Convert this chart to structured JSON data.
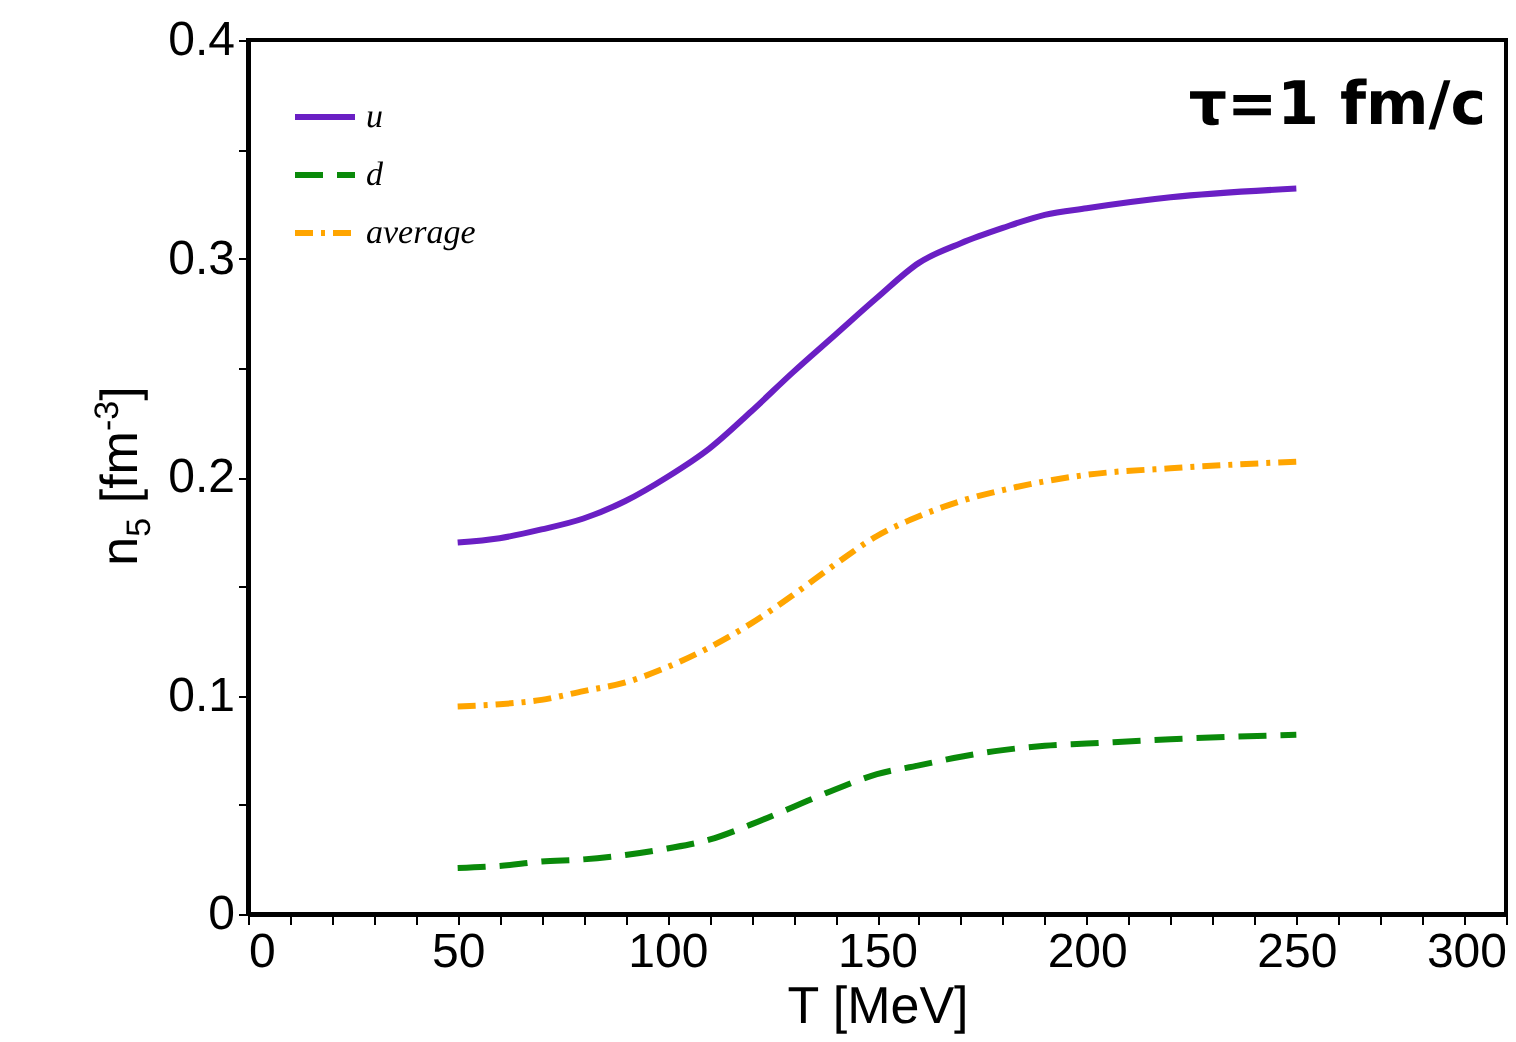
{
  "chart_data": {
    "type": "line",
    "title": "τ=1 fm/c",
    "xlabel": "T [MeV]",
    "ylabel": "n$_{5}$ [fm$^{-3}$]",
    "xlim": [
      0,
      300
    ],
    "ylim": [
      0,
      0.4
    ],
    "xticks": [
      0,
      {
        "value": 10,
        "label": null
      },
      {
        "value": 20,
        "label": null
      },
      {
        "value": 30,
        "label": null
      },
      {
        "value": 40,
        "label": null
      },
      50,
      {
        "value": 60,
        "label": null
      },
      {
        "value": 70,
        "label": null
      },
      {
        "value": 80,
        "label": null
      },
      {
        "value": 90,
        "label": null
      },
      100,
      {
        "value": 110,
        "label": null
      },
      {
        "value": 120,
        "label": null
      },
      {
        "value": 130,
        "label": null
      },
      {
        "value": 140,
        "label": null
      },
      150,
      {
        "value": 160,
        "label": null
      },
      {
        "value": 170,
        "label": null
      },
      {
        "value": 180,
        "label": null
      },
      {
        "value": 190,
        "label": null
      },
      200,
      {
        "value": 210,
        "label": null
      },
      {
        "value": 220,
        "label": null
      },
      {
        "value": 230,
        "label": null
      },
      {
        "value": 240,
        "label": null
      },
      250,
      {
        "value": 260,
        "label": null
      },
      {
        "value": 270,
        "label": null
      },
      {
        "value": 280,
        "label": null
      },
      {
        "value": 290,
        "label": null
      },
      300
    ],
    "yticks": [
      0,
      {
        "value": 0.05,
        "label": null
      },
      0.1,
      {
        "value": 0.15,
        "label": null
      },
      0.2,
      {
        "value": 0.25,
        "label": null
      },
      0.3,
      {
        "value": 0.35,
        "label": null
      },
      0.4
    ],
    "x": [
      50,
      60,
      70,
      80,
      90,
      100,
      110,
      120,
      130,
      140,
      150,
      160,
      170,
      180,
      190,
      200,
      220,
      250
    ],
    "series": [
      {
        "name": "u",
        "color": "#6a1fc4",
        "line_style": "solid",
        "values": [
          0.17,
          0.172,
          0.176,
          0.181,
          0.189,
          0.2,
          0.213,
          0.23,
          0.248,
          0.265,
          0.282,
          0.298,
          0.307,
          0.314,
          0.32,
          0.323,
          0.328,
          0.332
        ]
      },
      {
        "name": "d",
        "color": "#0a8a0a",
        "line_style": "dashed",
        "values": [
          0.021,
          0.022,
          0.024,
          0.025,
          0.027,
          0.03,
          0.034,
          0.041,
          0.049,
          0.057,
          0.064,
          0.068,
          0.072,
          0.075,
          0.077,
          0.078,
          0.08,
          0.082
        ]
      },
      {
        "name": "average",
        "color": "#ffa500",
        "line_style": "dashdot",
        "values": [
          0.095,
          0.096,
          0.098,
          0.102,
          0.106,
          0.113,
          0.122,
          0.133,
          0.146,
          0.16,
          0.173,
          0.182,
          0.189,
          0.194,
          0.198,
          0.201,
          0.204,
          0.207
        ]
      }
    ],
    "legend": "top left",
    "grid": false
  }
}
